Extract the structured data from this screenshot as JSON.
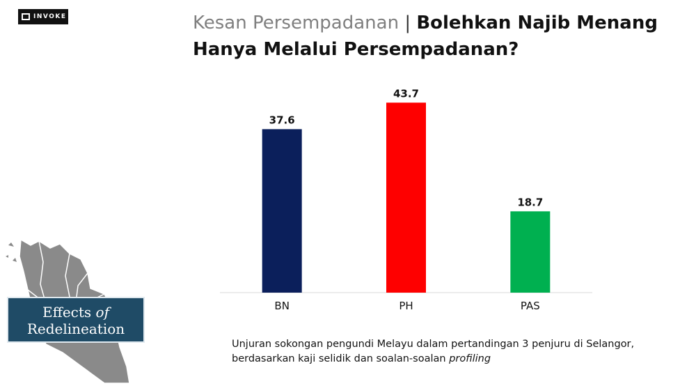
{
  "logo": {
    "text": "INVOKE"
  },
  "title": {
    "light": "Kesan Persempadanan",
    "separator": "|",
    "bold": "Bolehkan Najib Menang Hanya Melalui Persempadanan?"
  },
  "badge": {
    "line1_main": "Effects",
    "line1_of": "of",
    "line2": "Redelineation"
  },
  "caption": {
    "text": "Unjuran sokongan pengundi Melayu dalam pertandingan 3 penjuru di Selangor, berdasarkan kaji selidik dan soalan-soalan",
    "emphasis": "profiling"
  },
  "chart_data": {
    "type": "bar",
    "categories": [
      "BN",
      "PH",
      "PAS"
    ],
    "values": [
      37.6,
      43.7,
      18.7
    ],
    "colors": [
      "#0b1f5b",
      "#fe0000",
      "#00b050"
    ],
    "ylim": [
      0,
      50
    ],
    "grid": false,
    "data_labels": true
  }
}
